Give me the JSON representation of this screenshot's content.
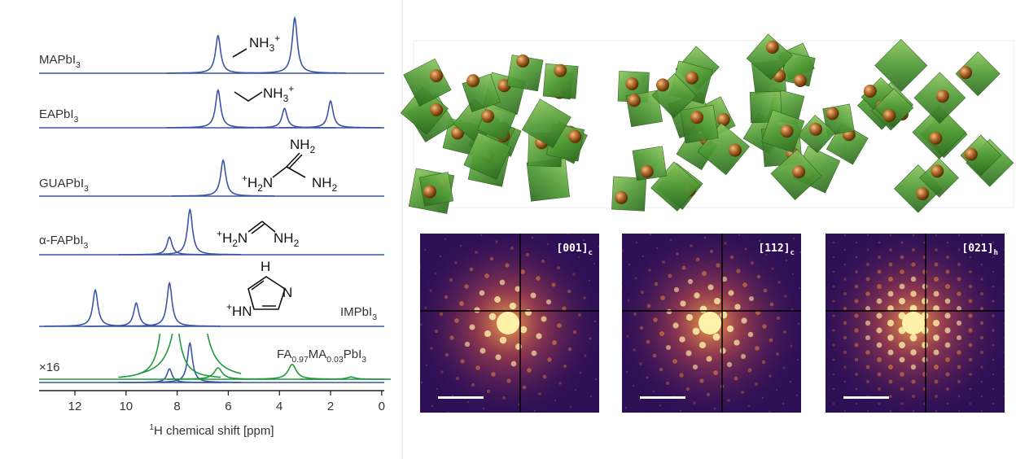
{
  "chart_data": {
    "type": "line",
    "xlabel": "1H chemical shift [ppm]",
    "xlim": [
      13.4,
      -0.1
    ],
    "xticks": [
      12,
      10,
      8,
      6,
      4,
      2,
      0
    ],
    "series": [
      {
        "name": "MAPbI3",
        "color": "#3b55a5",
        "x": [
          6.4,
          3.4
        ],
        "values": [
          0.66,
          0.97
        ]
      },
      {
        "name": "EAPbI3",
        "color": "#3b55a5",
        "x": [
          6.4,
          3.8,
          2.0
        ],
        "values": [
          0.66,
          0.34,
          0.47
        ]
      },
      {
        "name": "GUAPbI3",
        "color": "#3b55a5",
        "x": [
          6.2
        ],
        "values": [
          0.63
        ]
      },
      {
        "name": "α-FAPbI3",
        "color": "#3b55a5",
        "x": [
          8.3,
          7.5
        ],
        "values": [
          0.31,
          0.79
        ]
      },
      {
        "name": "IMPbI3",
        "color": "#3b55a5",
        "x": [
          11.2,
          9.6,
          8.3
        ],
        "values": [
          0.64,
          0.41,
          0.76
        ]
      },
      {
        "name": "FA0.97MA0.03PbI3",
        "color": "#3b55a5",
        "x": [
          8.3,
          7.5
        ],
        "values": [
          0.24,
          0.69
        ]
      },
      {
        "name": "×16",
        "color": "#1f9a3c",
        "x": [
          8.3,
          7.5,
          6.4,
          3.5,
          1.2
        ],
        "values": [
          3.8,
          11,
          0.2,
          0.26,
          0.04
        ]
      }
    ],
    "molecules": [
      [
        "NH3+"
      ],
      [
        "NH3+"
      ],
      [
        "NH2",
        "+H2N",
        "NH2"
      ],
      [
        "+H2N",
        "NH2"
      ],
      [
        "H",
        "N",
        "+HN"
      ]
    ]
  },
  "diffraction": {
    "labels": [
      "[001]c",
      "[112]c",
      "[021]h"
    ]
  }
}
